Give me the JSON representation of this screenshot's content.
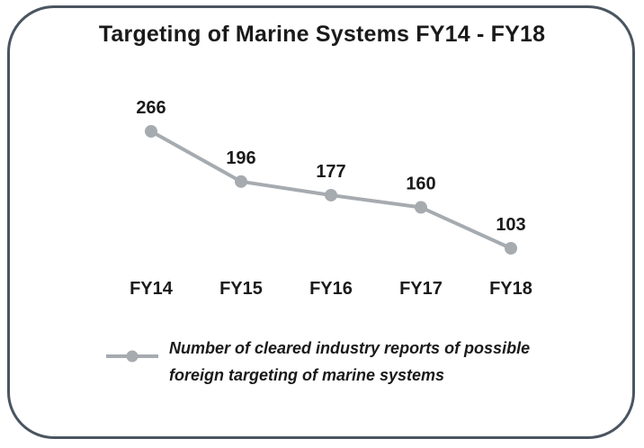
{
  "chart_data": {
    "type": "line",
    "title": "Targeting of Marine Systems FY14 - FY18",
    "categories": [
      "FY14",
      "FY15",
      "FY16",
      "FY17",
      "FY18"
    ],
    "series": [
      {
        "name": "Number of cleared industry reports of possible foreign targeting of marine systems",
        "values": [
          266,
          196,
          177,
          160,
          103
        ],
        "color": "#a6abb0"
      }
    ],
    "ylim": [
      0,
      300
    ],
    "grid": false,
    "legend_position": "bottom"
  },
  "legend": {
    "line1": "Number of cleared industry reports of possible",
    "line2": "foreign targeting of marine systems"
  }
}
